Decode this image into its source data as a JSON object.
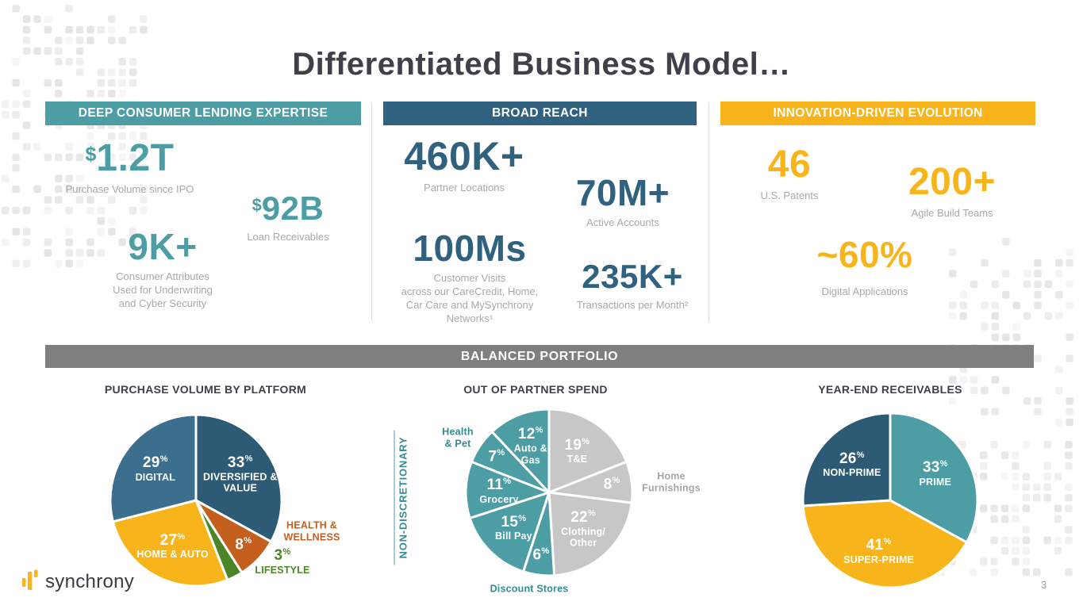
{
  "slide": {
    "title": "Differentiated Business Model…",
    "page_number": "3",
    "logo": "synchrony"
  },
  "colors": {
    "teal": "#4D9DA5",
    "dark_blue": "#30617E",
    "gold": "#F7B41B",
    "charcoal": "#3F4049",
    "banner_gray": "#7F7F7F",
    "label_gray": "#A9A9A9"
  },
  "sections": [
    {
      "header": "DEEP CONSUMER LENDING EXPERTISE",
      "stats": [
        {
          "prefix": "$",
          "value": "1.2T",
          "label": "Purchase Volume since IPO"
        },
        {
          "prefix": "$",
          "value": "92B",
          "label": "Loan Receivables"
        },
        {
          "prefix": "",
          "value": "9K+",
          "label": "Consumer Attributes\nUsed for Underwriting\nand Cyber Security"
        }
      ]
    },
    {
      "header": "BROAD REACH",
      "stats": [
        {
          "prefix": "",
          "value": "460K+",
          "label": "Partner Locations"
        },
        {
          "prefix": "",
          "value": "70M+",
          "label": "Active Accounts"
        },
        {
          "prefix": "",
          "value": "100Ms",
          "label": "Customer Visits\nacross our CareCredit, Home,\nCar Care and MySynchrony\nNetworks¹"
        },
        {
          "prefix": "",
          "value": "235K+",
          "label": "Transactions per Month²"
        }
      ]
    },
    {
      "header": "INNOVATION-DRIVEN EVOLUTION",
      "stats": [
        {
          "prefix": "",
          "value": "46",
          "label": "U.S. Patents"
        },
        {
          "prefix": "",
          "value": "200+",
          "label": "Agile Build Teams"
        },
        {
          "prefix": "",
          "value": "~60%",
          "label": "Digital Applications"
        }
      ]
    }
  ],
  "portfolio": {
    "banner": "BALANCED PORTFOLIO"
  },
  "chart_data": [
    {
      "type": "pie",
      "title": "PURCHASE VOLUME BY PLATFORM",
      "start_angle": 0,
      "clockwise": true,
      "slices": [
        {
          "label": "DIVERSIFIED &\nVALUE",
          "value": 33,
          "color": "#2D5A74"
        },
        {
          "label": "HEALTH &\nWELLNESS",
          "value": 8,
          "color": "#C55F1E",
          "label_color": "#C55F1E"
        },
        {
          "label": "LIFESTYLE",
          "value": 3,
          "color": "#4C8527",
          "label_color": "#4C8527"
        },
        {
          "label": "HOME & AUTO",
          "value": 27,
          "color": "#F7B41B"
        },
        {
          "label": "DIGITAL",
          "value": 29,
          "color": "#3C6E8E"
        }
      ]
    },
    {
      "type": "pie",
      "title": "OUT OF PARTNER SPEND",
      "side_label": "NON-DISCRETIONARY",
      "start_angle": 0,
      "clockwise": true,
      "slices": [
        {
          "label": "T&E",
          "value": 19,
          "color": "#C7C7C7"
        },
        {
          "label": "Home\nFurnishings",
          "value": 8,
          "color": "#C7C7C7",
          "label_color": "#A6A6A6"
        },
        {
          "label": "Clothing/\nOther",
          "value": 22,
          "color": "#C7C7C7"
        },
        {
          "label": "Discount Stores",
          "value": 6,
          "color": "#4D9DA5",
          "label_color": "#358B94"
        },
        {
          "label": "Bill Pay",
          "value": 15,
          "color": "#4D9DA5"
        },
        {
          "label": "Grocery",
          "value": 11,
          "color": "#4D9DA5"
        },
        {
          "label": "Health\n& Pet",
          "value": 7,
          "color": "#4D9DA5",
          "label_color": "#358B94"
        },
        {
          "label": "Auto &\nGas",
          "value": 12,
          "color": "#4D9DA5"
        }
      ]
    },
    {
      "type": "pie",
      "title": "YEAR-END RECEIVABLES",
      "start_angle": 0,
      "clockwise": true,
      "slices": [
        {
          "label": "PRIME",
          "value": 33,
          "color": "#4D9DA5"
        },
        {
          "label": "SUPER-PRIME",
          "value": 41,
          "color": "#F7B41B"
        },
        {
          "label": "NON-PRIME",
          "value": 26,
          "color": "#2D5A74"
        }
      ]
    }
  ]
}
